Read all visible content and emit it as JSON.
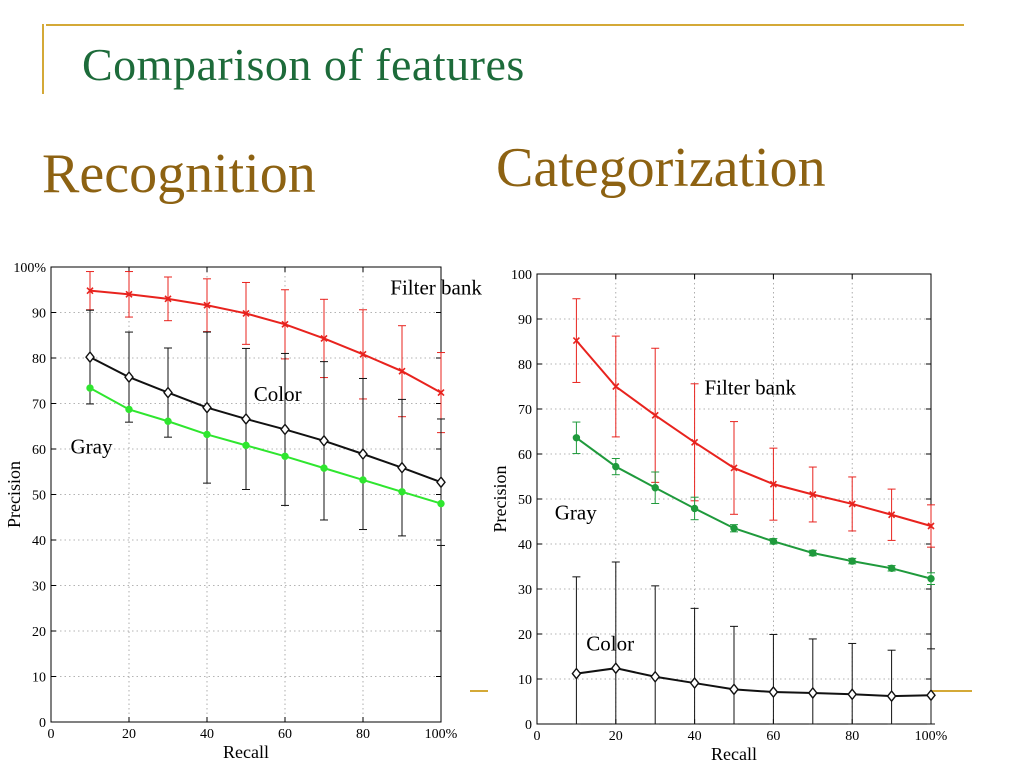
{
  "slide": {
    "title": "Comparison of features",
    "left_heading": "Recognition",
    "right_heading": "Categorization"
  },
  "chart_data": [
    {
      "type": "line",
      "name": "recognition",
      "xlabel": "Recall",
      "ylabel": "Precision",
      "xlim": [
        0,
        100
      ],
      "ylim": [
        0,
        100
      ],
      "xticks": [
        "0",
        "20",
        "40",
        "60",
        "80",
        "100%"
      ],
      "yticks": [
        "0",
        "10",
        "20",
        "30",
        "40",
        "50",
        "60",
        "70",
        "80",
        "90",
        "100%"
      ],
      "grid": true,
      "x": [
        10,
        20,
        30,
        40,
        50,
        60,
        70,
        80,
        90,
        100
      ],
      "series": [
        {
          "name": "Filter bank",
          "color": "#e8231e",
          "marker": "x",
          "values": [
            94.8,
            94.0,
            93.0,
            91.6,
            89.8,
            87.4,
            84.3,
            80.8,
            77.1,
            72.4
          ],
          "err": [
            4.2,
            5.0,
            4.8,
            5.8,
            6.8,
            7.6,
            8.6,
            9.8,
            10.0,
            8.8
          ]
        },
        {
          "name": "Color",
          "color": "#111111",
          "marker": "diamond",
          "values": [
            80.2,
            75.8,
            72.4,
            69.1,
            66.6,
            64.3,
            61.8,
            58.9,
            55.9,
            52.7
          ],
          "err": [
            10.3,
            9.9,
            9.8,
            16.6,
            15.5,
            16.7,
            17.4,
            16.6,
            15.0,
            13.9
          ]
        },
        {
          "name": "Gray",
          "color": "#2fe62f",
          "marker": "dot",
          "values": [
            73.4,
            68.7,
            66.1,
            63.2,
            60.8,
            58.4,
            55.8,
            53.2,
            50.6,
            48.0
          ],
          "err": [
            0,
            0,
            0,
            0,
            0,
            0,
            0,
            0,
            0,
            0
          ]
        }
      ],
      "labels": [
        {
          "text": "Filter bank",
          "x": 87,
          "y": 94
        },
        {
          "text": "Color",
          "x": 52,
          "y": 70.5
        },
        {
          "text": "Gray",
          "x": 5,
          "y": 59
        }
      ]
    },
    {
      "type": "line",
      "name": "categorization",
      "xlabel": "Recall",
      "ylabel": "Precision",
      "xlim": [
        0,
        100
      ],
      "ylim": [
        0,
        100
      ],
      "xticks": [
        "0",
        "20",
        "40",
        "60",
        "80",
        "100%"
      ],
      "yticks": [
        "0",
        "10",
        "20",
        "30",
        "40",
        "50",
        "60",
        "70",
        "80",
        "90",
        "100"
      ],
      "grid": true,
      "x": [
        10,
        20,
        30,
        40,
        50,
        60,
        70,
        80,
        90,
        100
      ],
      "series": [
        {
          "name": "Filter bank",
          "color": "#e8231e",
          "marker": "x",
          "values": [
            85.2,
            75.0,
            68.6,
            62.6,
            56.9,
            53.3,
            51.0,
            48.9,
            46.5,
            44.0
          ],
          "err": [
            9.3,
            11.2,
            14.9,
            13.0,
            10.3,
            8.0,
            6.1,
            6.0,
            5.7,
            4.7
          ]
        },
        {
          "name": "Gray",
          "color": "#1f9a3c",
          "marker": "dot",
          "values": [
            63.6,
            57.2,
            52.5,
            47.9,
            43.5,
            40.6,
            38.0,
            36.2,
            34.6,
            32.3
          ],
          "err": [
            3.5,
            1.8,
            3.5,
            2.5,
            0.8,
            0.6,
            0.6,
            0.6,
            0.6,
            1.3
          ]
        },
        {
          "name": "Color",
          "color": "#111111",
          "marker": "diamond",
          "values": [
            11.2,
            12.4,
            10.5,
            9.1,
            7.7,
            7.1,
            6.9,
            6.6,
            6.2,
            6.4
          ],
          "err": [
            21.5,
            23.6,
            20.2,
            16.6,
            14.0,
            12.8,
            12.0,
            11.3,
            10.2,
            10.3
          ]
        }
      ],
      "labels": [
        {
          "text": "Filter bank",
          "x": 42.5,
          "y": 73.2
        },
        {
          "text": "Gray",
          "x": 4.5,
          "y": 45.4
        },
        {
          "text": "Color",
          "x": 12.5,
          "y": 16.3
        }
      ]
    }
  ]
}
